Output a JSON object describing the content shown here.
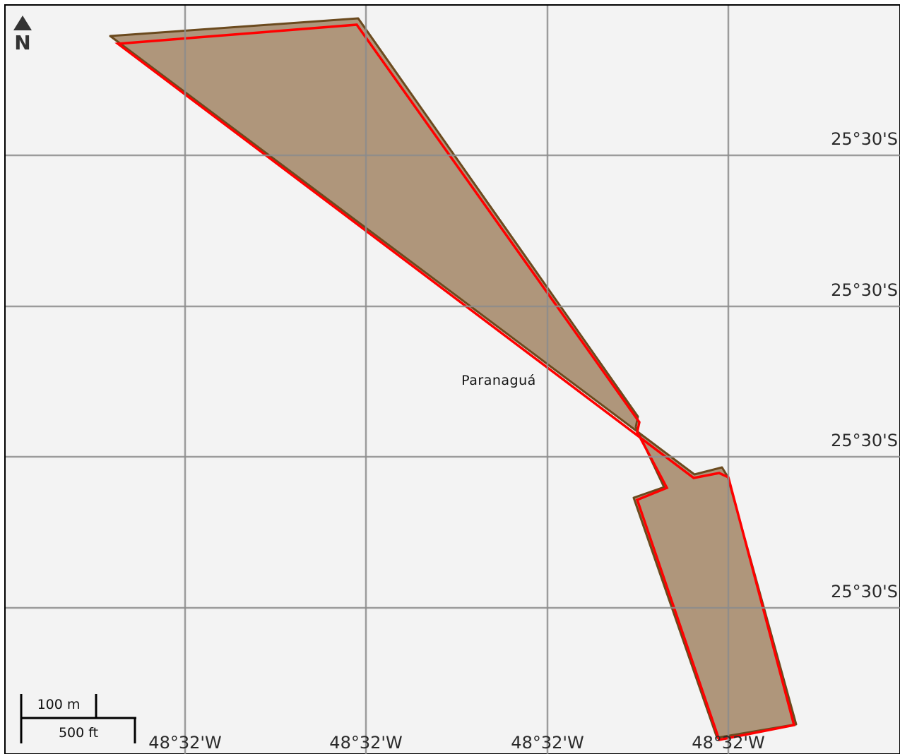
{
  "map": {
    "north_label": "N",
    "place_name": "Paranaguá",
    "latitude_labels": [
      "25°30'S",
      "25°30'S",
      "25°30'S",
      "25°30'S"
    ],
    "longitude_labels": [
      "48°32'W",
      "48°32'W",
      "48°32'W",
      "48°32'W"
    ],
    "scale_bar": {
      "metric_label": "100 m",
      "imperial_label": "500 ft"
    },
    "colors": {
      "background": "#f3f3f3",
      "feature_fill": "#af967b",
      "feature_outline": "#6b4a1e",
      "highlight_outline": "#ff0000",
      "grid": "#8c8c8c"
    }
  }
}
